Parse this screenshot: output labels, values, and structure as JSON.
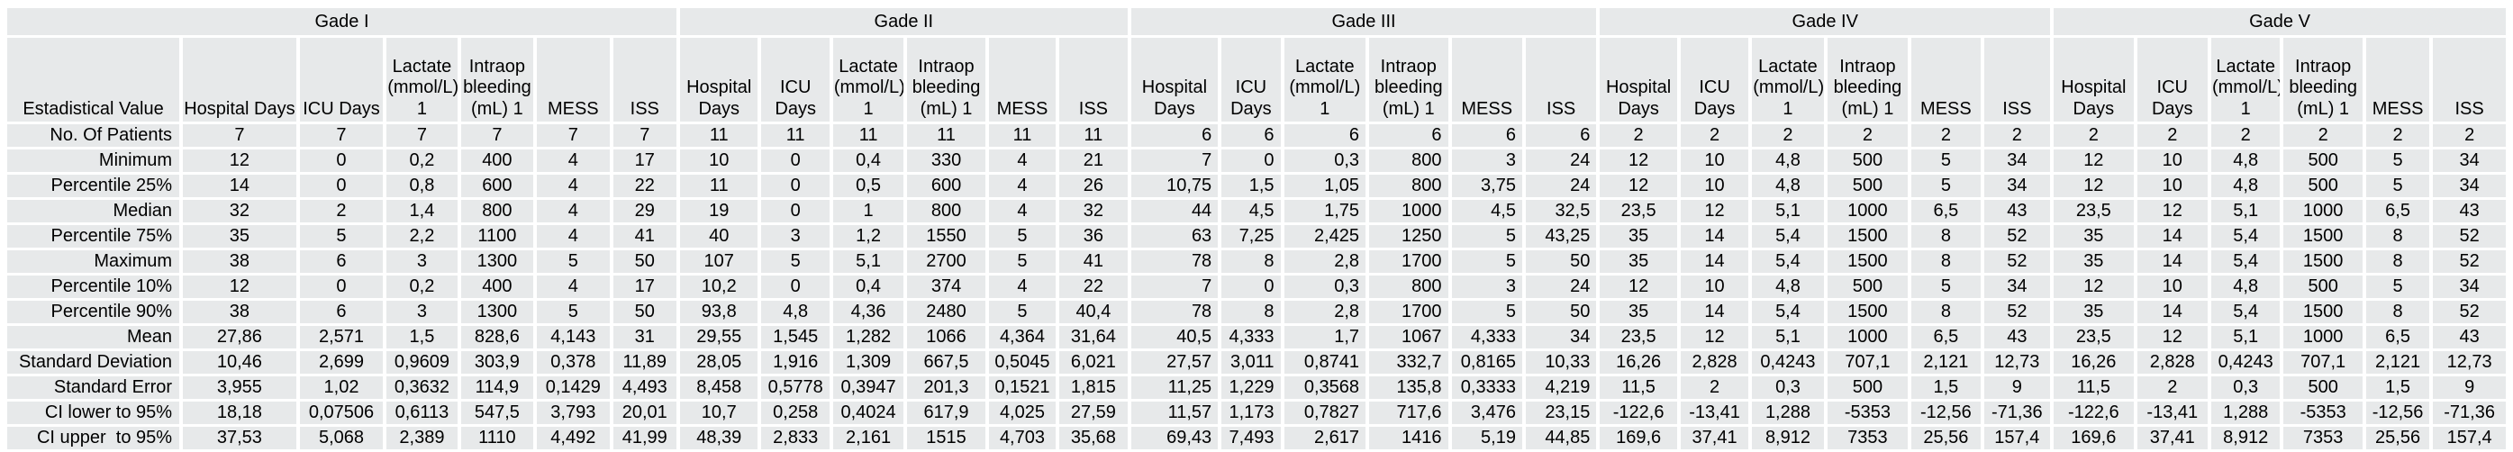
{
  "table": {
    "row_header_title": "Estadistical Value",
    "colors": {
      "cell_bg": "#e7e9ea",
      "grid_gap": "#ffffff",
      "text": "#000000"
    },
    "groups": [
      {
        "name": "Gade I",
        "align": "center",
        "columns": [
          "Hospital Days",
          "ICU Days",
          "Lactate\n(mmol/L)\n1",
          "Intraop\nbleeding\n(mL) 1",
          "MESS",
          "ISS"
        ]
      },
      {
        "name": "Gade II",
        "align": "center",
        "columns": [
          "Hospital\nDays",
          "ICU\nDays",
          "Lactate\n(mmol/L)\n1",
          "Intraop\nbleeding\n(mL) 1",
          "MESS",
          "ISS"
        ]
      },
      {
        "name": "Gade III",
        "align": "right",
        "columns": [
          "Hospital\nDays",
          "ICU\nDays",
          "Lactate\n(mmol/L)\n1",
          "Intraop\nbleeding\n(mL) 1",
          "MESS",
          "ISS"
        ]
      },
      {
        "name": "Gade IV",
        "align": "center",
        "columns": [
          "Hospital\nDays",
          "ICU\nDays",
          "Lactate\n(mmol/L)\n1",
          "Intraop\nbleeding\n(mL) 1",
          "MESS",
          "ISS"
        ]
      },
      {
        "name": "Gade V",
        "align": "center",
        "columns": [
          "Hospital\nDays",
          "ICU\nDays",
          "Lactate\n(mmol/L)\n1",
          "Intraop\nbleeding\n(mL) 1",
          "MESS",
          "ISS"
        ]
      }
    ],
    "rows": [
      {
        "label": "No. Of Patients",
        "values": [
          "7",
          "7",
          "7",
          "7",
          "7",
          "7",
          "11",
          "11",
          "11",
          "11",
          "11",
          "11",
          "6",
          "6",
          "6",
          "6",
          "6",
          "6",
          "2",
          "2",
          "2",
          "2",
          "2",
          "2",
          "2",
          "2",
          "2",
          "2",
          "2",
          "2"
        ]
      },
      {
        "label": "Minimum",
        "values": [
          "12",
          "0",
          "0,2",
          "400",
          "4",
          "17",
          "10",
          "0",
          "0,4",
          "330",
          "4",
          "21",
          "7",
          "0",
          "0,3",
          "800",
          "3",
          "24",
          "12",
          "10",
          "4,8",
          "500",
          "5",
          "34",
          "12",
          "10",
          "4,8",
          "500",
          "5",
          "34"
        ]
      },
      {
        "label": "Percentile 25%",
        "values": [
          "14",
          "0",
          "0,8",
          "600",
          "4",
          "22",
          "11",
          "0",
          "0,5",
          "600",
          "4",
          "26",
          "10,75",
          "1,5",
          "1,05",
          "800",
          "3,75",
          "24",
          "12",
          "10",
          "4,8",
          "500",
          "5",
          "34",
          "12",
          "10",
          "4,8",
          "500",
          "5",
          "34"
        ]
      },
      {
        "label": "Median",
        "values": [
          "32",
          "2",
          "1,4",
          "800",
          "4",
          "29",
          "19",
          "0",
          "1",
          "800",
          "4",
          "32",
          "44",
          "4,5",
          "1,75",
          "1000",
          "4,5",
          "32,5",
          "23,5",
          "12",
          "5,1",
          "1000",
          "6,5",
          "43",
          "23,5",
          "12",
          "5,1",
          "1000",
          "6,5",
          "43"
        ]
      },
      {
        "label": "Percentile 75%",
        "values": [
          "35",
          "5",
          "2,2",
          "1100",
          "4",
          "41",
          "40",
          "3",
          "1,2",
          "1550",
          "5",
          "36",
          "63",
          "7,25",
          "2,425",
          "1250",
          "5",
          "43,25",
          "35",
          "14",
          "5,4",
          "1500",
          "8",
          "52",
          "35",
          "14",
          "5,4",
          "1500",
          "8",
          "52"
        ]
      },
      {
        "label": "Maximum",
        "values": [
          "38",
          "6",
          "3",
          "1300",
          "5",
          "50",
          "107",
          "5",
          "5,1",
          "2700",
          "5",
          "41",
          "78",
          "8",
          "2,8",
          "1700",
          "5",
          "50",
          "35",
          "14",
          "5,4",
          "1500",
          "8",
          "52",
          "35",
          "14",
          "5,4",
          "1500",
          "8",
          "52"
        ]
      },
      {
        "label": "Percentile 10%",
        "values": [
          "12",
          "0",
          "0,2",
          "400",
          "4",
          "17",
          "10,2",
          "0",
          "0,4",
          "374",
          "4",
          "22",
          "7",
          "0",
          "0,3",
          "800",
          "3",
          "24",
          "12",
          "10",
          "4,8",
          "500",
          "5",
          "34",
          "12",
          "10",
          "4,8",
          "500",
          "5",
          "34"
        ]
      },
      {
        "label": "Percentile 90%",
        "values": [
          "38",
          "6",
          "3",
          "1300",
          "5",
          "50",
          "93,8",
          "4,8",
          "4,36",
          "2480",
          "5",
          "40,4",
          "78",
          "8",
          "2,8",
          "1700",
          "5",
          "50",
          "35",
          "14",
          "5,4",
          "1500",
          "8",
          "52",
          "35",
          "14",
          "5,4",
          "1500",
          "8",
          "52"
        ]
      },
      {
        "label": "Mean",
        "values": [
          "27,86",
          "2,571",
          "1,5",
          "828,6",
          "4,143",
          "31",
          "29,55",
          "1,545",
          "1,282",
          "1066",
          "4,364",
          "31,64",
          "40,5",
          "4,333",
          "1,7",
          "1067",
          "4,333",
          "34",
          "23,5",
          "12",
          "5,1",
          "1000",
          "6,5",
          "43",
          "23,5",
          "12",
          "5,1",
          "1000",
          "6,5",
          "43"
        ]
      },
      {
        "label": "Standard Deviation",
        "values": [
          "10,46",
          "2,699",
          "0,9609",
          "303,9",
          "0,378",
          "11,89",
          "28,05",
          "1,916",
          "1,309",
          "667,5",
          "0,5045",
          "6,021",
          "27,57",
          "3,011",
          "0,8741",
          "332,7",
          "0,8165",
          "10,33",
          "16,26",
          "2,828",
          "0,4243",
          "707,1",
          "2,121",
          "12,73",
          "16,26",
          "2,828",
          "0,4243",
          "707,1",
          "2,121",
          "12,73"
        ]
      },
      {
        "label": "Standard Error",
        "values": [
          "3,955",
          "1,02",
          "0,3632",
          "114,9",
          "0,1429",
          "4,493",
          "8,458",
          "0,5778",
          "0,3947",
          "201,3",
          "0,1521",
          "1,815",
          "11,25",
          "1,229",
          "0,3568",
          "135,8",
          "0,3333",
          "4,219",
          "11,5",
          "2",
          "0,3",
          "500",
          "1,5",
          "9",
          "11,5",
          "2",
          "0,3",
          "500",
          "1,5",
          "9"
        ]
      },
      {
        "label": "CI lower to 95%",
        "values": [
          "18,18",
          "0,07506",
          "0,6113",
          "547,5",
          "3,793",
          "20,01",
          "10,7",
          "0,258",
          "0,4024",
          "617,9",
          "4,025",
          "27,59",
          "11,57",
          "1,173",
          "0,7827",
          "717,6",
          "3,476",
          "23,15",
          "-122,6",
          "-13,41",
          "1,288",
          "-5353",
          "-12,56",
          "-71,36",
          "-122,6",
          "-13,41",
          "1,288",
          "-5353",
          "-12,56",
          "-71,36"
        ]
      },
      {
        "label": "CI upper  to 95%",
        "values": [
          "37,53",
          "5,068",
          "2,389",
          "1110",
          "4,492",
          "41,99",
          "48,39",
          "2,833",
          "2,161",
          "1515",
          "4,703",
          "35,68",
          "69,43",
          "7,493",
          "2,617",
          "1416",
          "5,19",
          "44,85",
          "169,6",
          "37,41",
          "8,912",
          "7353",
          "25,56",
          "157,4",
          "169,6",
          "37,41",
          "8,912",
          "7353",
          "25,56",
          "157,4"
        ]
      }
    ]
  }
}
